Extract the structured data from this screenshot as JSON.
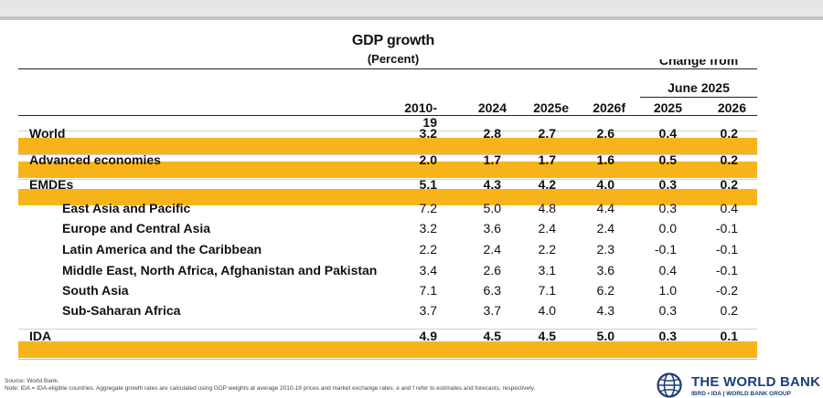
{
  "header": {
    "title": "GDP growth",
    "subtitle": "(Percent)",
    "group_label_line1": "Change from",
    "group_label_line2": "June 2025"
  },
  "columns": [
    "2010-19",
    "2024",
    "2025e",
    "2026f",
    "2025",
    "2026"
  ],
  "rows": [
    {
      "label": "World",
      "values": [
        "3.2",
        "2.8",
        "2.7",
        "2.6",
        "0.4",
        "0.2"
      ]
    },
    {
      "label": "Advanced economies",
      "values": [
        "2.0",
        "1.7",
        "1.7",
        "1.6",
        "0.5",
        "0.2"
      ]
    },
    {
      "label": "EMDEs",
      "values": [
        "5.1",
        "4.3",
        "4.2",
        "4.0",
        "0.3",
        "0.2"
      ]
    },
    {
      "label": "East Asia and Pacific",
      "values": [
        "7.2",
        "5.0",
        "4.8",
        "4.4",
        "0.3",
        "0.4"
      ]
    },
    {
      "label": "Europe and Central Asia",
      "values": [
        "3.2",
        "3.6",
        "2.4",
        "2.4",
        "0.0",
        "-0.1"
      ]
    },
    {
      "label": "Latin America and the Caribbean",
      "values": [
        "2.2",
        "2.4",
        "2.2",
        "2.3",
        "-0.1",
        "-0.1"
      ]
    },
    {
      "label": "Middle East, North Africa, Afghanistan and Pakistan",
      "values": [
        "3.4",
        "2.6",
        "3.1",
        "3.6",
        "0.4",
        "-0.1"
      ]
    },
    {
      "label": "South Asia",
      "values": [
        "7.1",
        "6.3",
        "7.1",
        "6.2",
        "1.0",
        "-0.2"
      ]
    },
    {
      "label": "Sub-Saharan Africa",
      "values": [
        "3.7",
        "3.7",
        "4.0",
        "4.3",
        "0.3",
        "0.2"
      ]
    },
    {
      "label": "IDA",
      "values": [
        "4.9",
        "4.5",
        "4.5",
        "5.0",
        "0.3",
        "0.1"
      ]
    }
  ],
  "notes": {
    "source": "Source: World Bank.",
    "note": "Note: IDA = IDA-eligible countries. Aggregate growth rates are calculated using GDP weights at average 2010-19 prices and market exchange rates; e and f refer to estimates and forecasts, respectively."
  },
  "logo": {
    "name": "THE WORLD BANK",
    "sub": "IBRD • IDA | WORLD BANK GROUP"
  },
  "colors": {
    "highlight": "#f7b41a",
    "brand": "#1c3f78"
  }
}
